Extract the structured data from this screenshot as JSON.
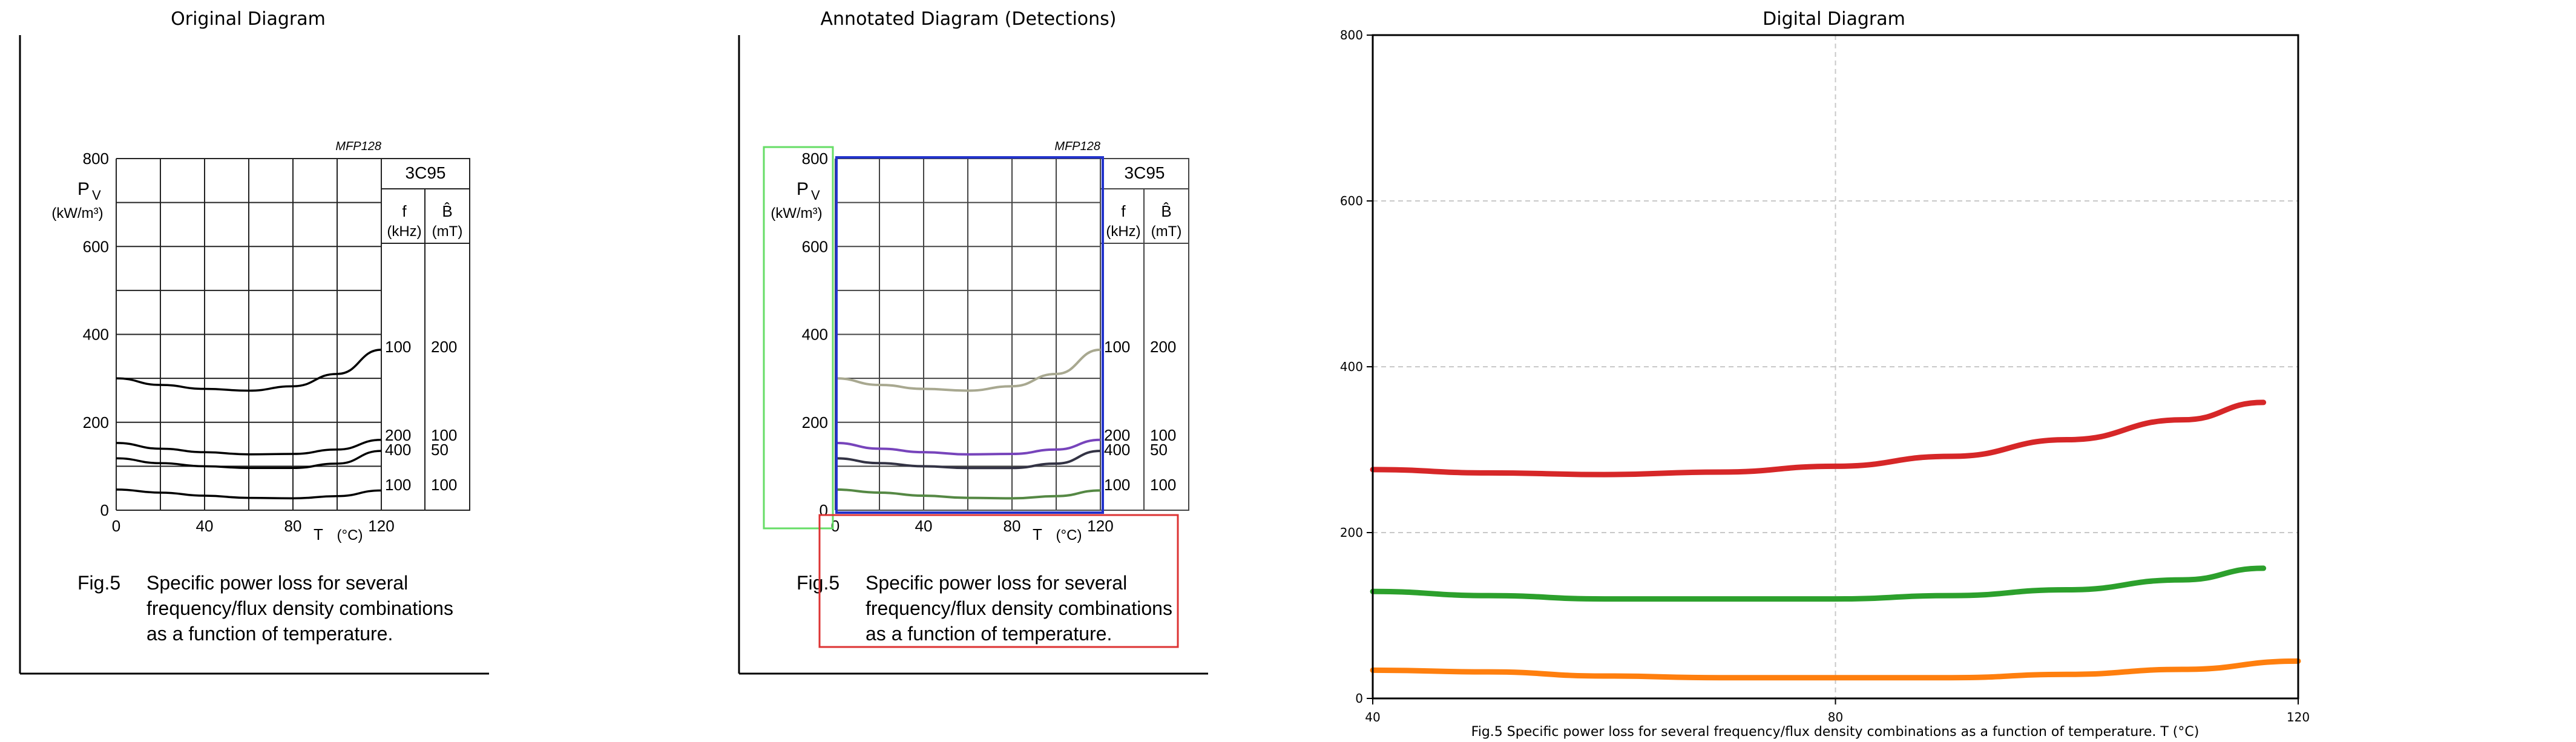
{
  "panels": {
    "original_title": "Original Diagram",
    "annotated_title": "Annotated Diagram (Detections)",
    "digital_title": "Digital Diagram"
  },
  "diagram": {
    "material_header": "MFP128",
    "material": "3C95",
    "y_symbol": "P",
    "y_subscript": "V",
    "y_unit": "(kW/m³)",
    "x_symbol": "T",
    "x_unit": "(°C)",
    "col_f_label": "f",
    "col_f_unit": "(kHz)",
    "col_b_label": "B̂",
    "col_b_unit": "(mT)",
    "y_ticks": [
      "0",
      "200",
      "400",
      "600",
      "800"
    ],
    "x_ticks": [
      "0",
      "40",
      "80",
      "120"
    ],
    "table_rows": [
      {
        "f": "100",
        "b": "200"
      },
      {
        "f": "200",
        "b": "100"
      },
      {
        "f": "400",
        "b": "50"
      },
      {
        "f": "100",
        "b": "100"
      }
    ],
    "fig_label": "Fig.5",
    "caption_line1": "Specific power loss for several",
    "caption_line2": "frequency/flux density combinations",
    "caption_line3": "as a function of temperature."
  },
  "colors": {
    "annot_green": "#66dd66",
    "annot_blue": "#2233cc",
    "annot_red": "#dd3333",
    "curve_top": "#a8a890",
    "curve_purple": "#7744bb",
    "curve_dark": "#333344",
    "curve_green": "#558844",
    "grid": "#c8c8c8"
  },
  "chart_data": {
    "type": "line",
    "title": "Digital Diagram",
    "xlabel": "Fig.5 Specific power loss for several frequency/flux density combinations as a function of temperature. T (°C)",
    "ylabel": "",
    "xlim": [
      40,
      120
    ],
    "ylim": [
      0,
      800
    ],
    "x_ticks": [
      "40",
      "80",
      "120"
    ],
    "y_ticks": [
      "0",
      "200",
      "400",
      "600",
      "800"
    ],
    "grid": true,
    "series": [
      {
        "color": "#d62728",
        "x": [
          40,
          50,
          60,
          70,
          80,
          90,
          100,
          110,
          117
        ],
        "y": [
          276,
          272,
          270,
          273,
          280,
          292,
          312,
          336,
          357
        ]
      },
      {
        "color": "#2ca02c",
        "x": [
          40,
          50,
          60,
          70,
          80,
          90,
          100,
          110,
          117
        ],
        "y": [
          129,
          124,
          120,
          120,
          120,
          124,
          131,
          143,
          157
        ]
      },
      {
        "color": "#ff7f0e",
        "x": [
          40,
          50,
          60,
          70,
          80,
          90,
          100,
          110,
          120
        ],
        "y": [
          34,
          32,
          27,
          25,
          25,
          25,
          29,
          35,
          45
        ]
      }
    ]
  }
}
